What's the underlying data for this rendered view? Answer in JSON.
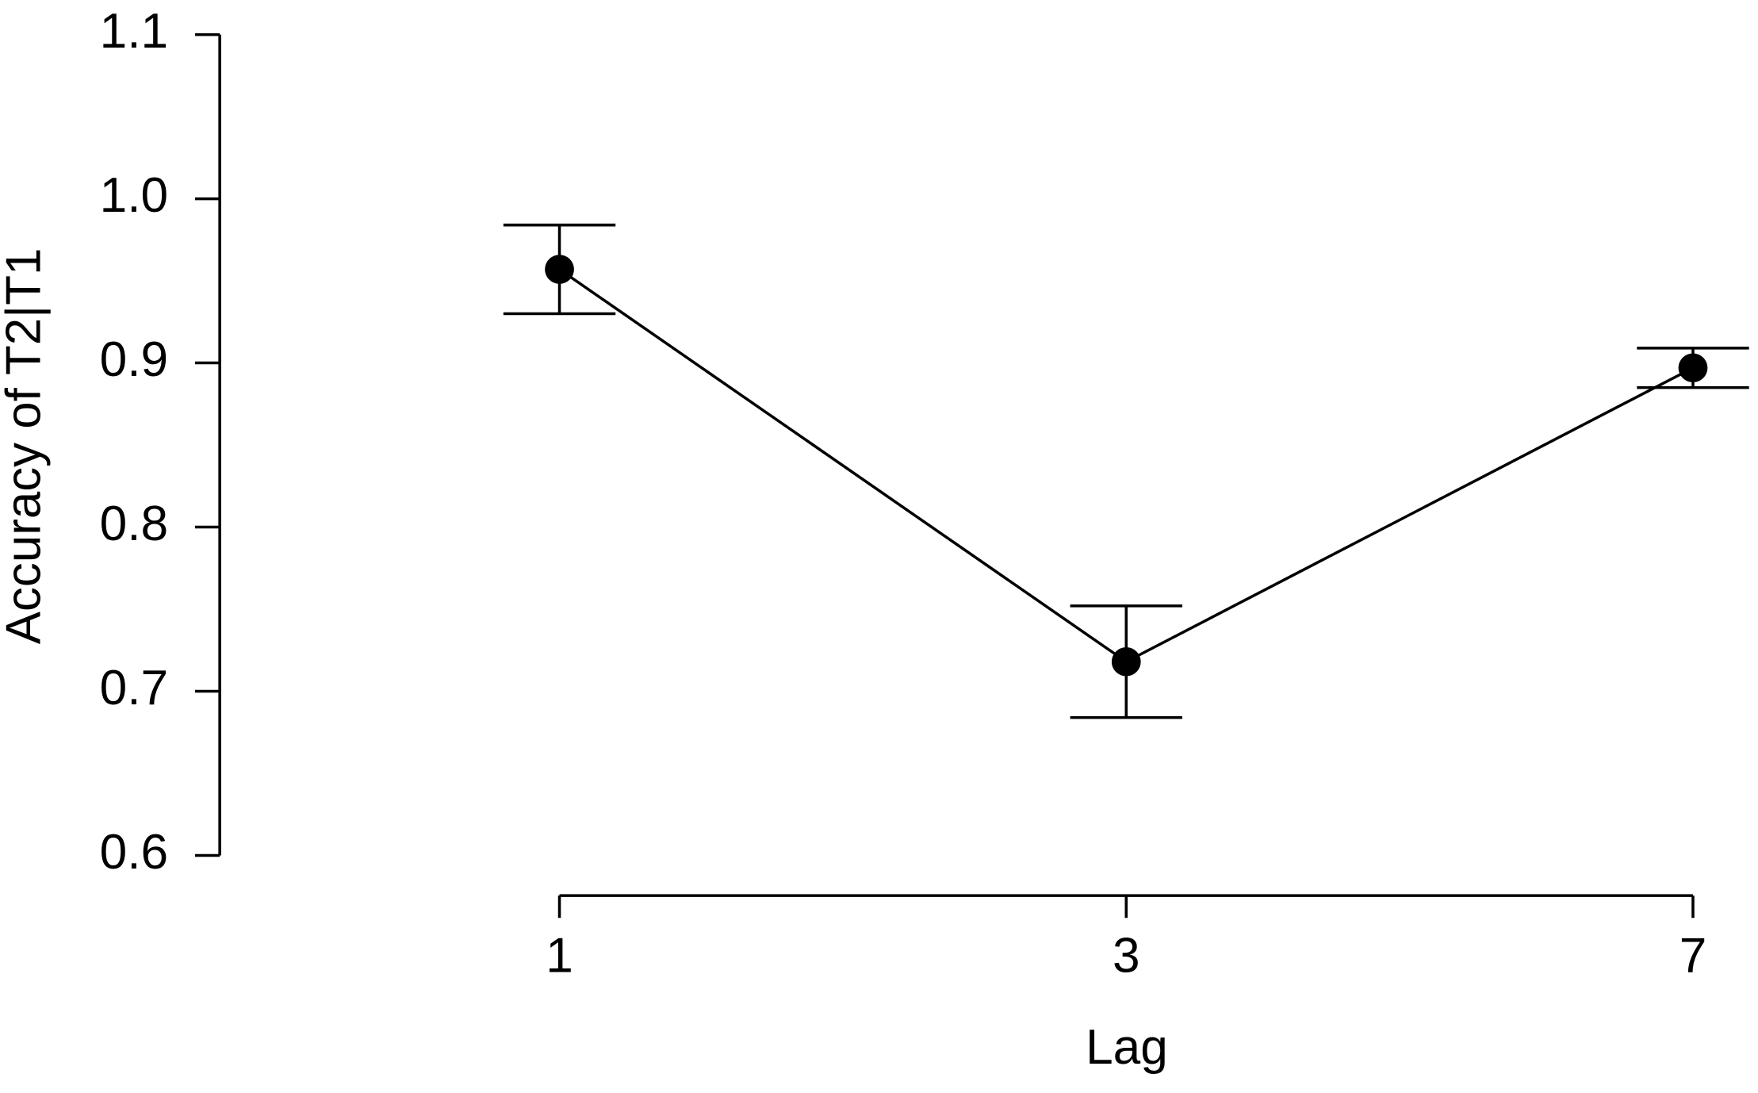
{
  "chart_data": {
    "type": "line",
    "x_label": "Lag",
    "y_label": "Accuracy of T2|T1",
    "categories": [
      "1",
      "3",
      "7"
    ],
    "values": [
      0.957,
      0.718,
      0.897
    ],
    "errors": [
      0.027,
      0.034,
      0.012
    ],
    "color": "#000000",
    "ylim": [
      0.6,
      1.1
    ],
    "yticks": [
      0.6,
      0.7,
      0.8,
      0.9,
      {
        "value": 1,
        "label": "1.0"
      },
      1.1
    ]
  }
}
